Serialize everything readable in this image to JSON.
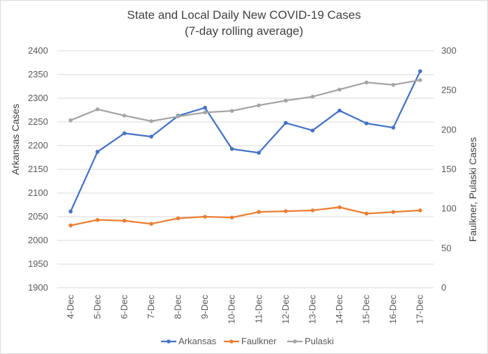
{
  "chart_data": {
    "type": "line",
    "title": "State and Local Daily New COVID-19 Cases",
    "subtitle": "(7-day rolling average)",
    "x": [
      "4-Dec",
      "5-Dec",
      "6-Dec",
      "7-Dec",
      "8-Dec",
      "9-Dec",
      "10-Dec",
      "11-Dec",
      "12-Dec",
      "13-Dec",
      "14-Dec",
      "15-Dec",
      "16-Dec",
      "17-Dec"
    ],
    "y_left": {
      "label": "Arkansas Cases",
      "ylim": [
        1900,
        2400
      ],
      "ticks": [
        "1900",
        "1950",
        "2000",
        "2050",
        "2100",
        "2150",
        "2200",
        "2250",
        "2300",
        "2350",
        "2400"
      ]
    },
    "y_right": {
      "label": "Faulkner, Pulaski Cases",
      "ylim": [
        0,
        300
      ],
      "ticks": [
        "0",
        "50",
        "100",
        "150",
        "200",
        "250",
        "300"
      ]
    },
    "grid": true,
    "legend_position": "bottom",
    "series": [
      {
        "name": "Arkansas",
        "axis": "left",
        "color": "#4472C4",
        "values": [
          2061,
          2187,
          2226,
          2219,
          2263,
          2280,
          2193,
          2185,
          2248,
          2232,
          2274,
          2247,
          2238,
          2357
        ]
      },
      {
        "name": "Faulkner",
        "axis": "right",
        "color": "#ED7D31",
        "values": [
          79,
          86,
          85,
          81,
          88,
          90,
          89,
          96,
          97,
          98,
          102,
          94,
          96,
          98
        ]
      },
      {
        "name": "Pulaski",
        "axis": "right",
        "color": "#A5A5A5",
        "values": [
          212,
          226,
          218,
          211,
          217,
          222,
          224,
          231,
          237,
          242,
          251,
          260,
          257,
          263
        ]
      }
    ]
  }
}
